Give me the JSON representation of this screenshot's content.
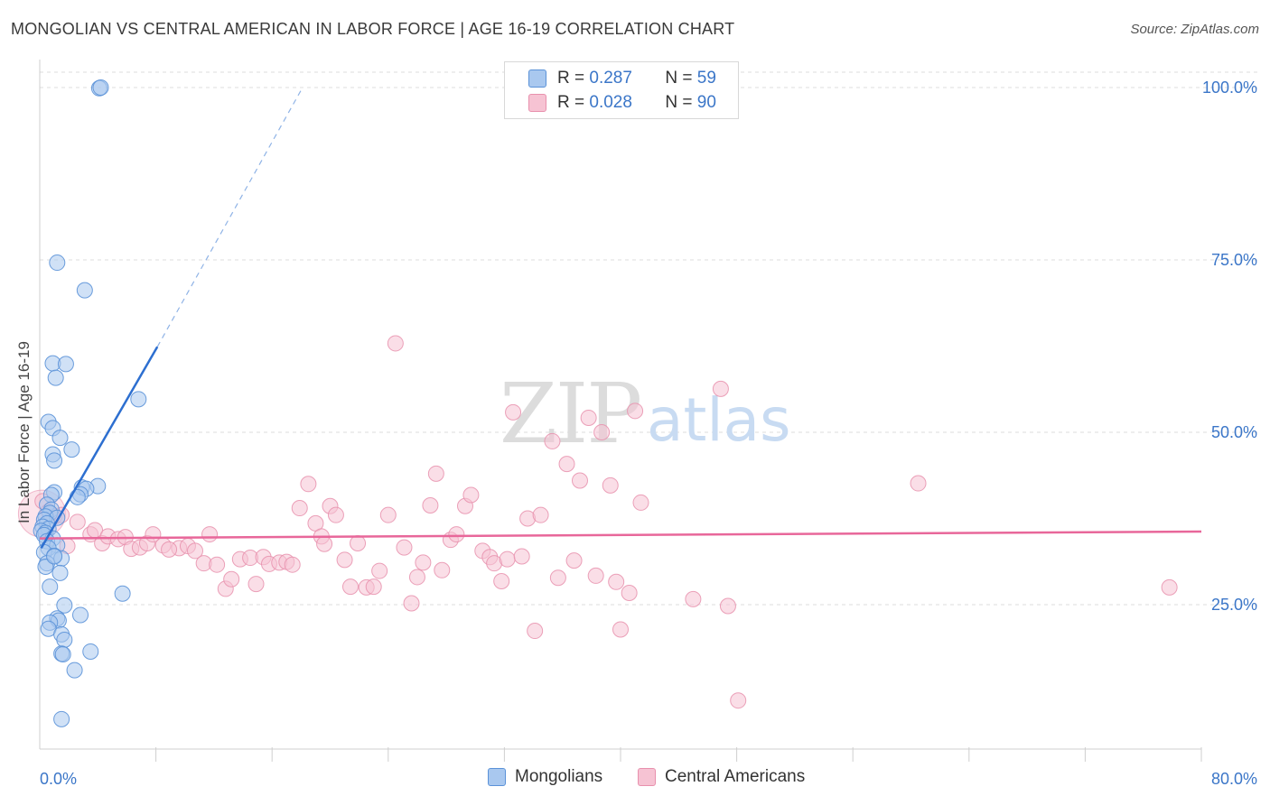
{
  "header": {
    "title": "MONGOLIAN VS CENTRAL AMERICAN IN LABOR FORCE | AGE 16-19 CORRELATION CHART",
    "source": "Source: ZipAtlas.com"
  },
  "colors": {
    "mongolian_fill": "#a9c8ef",
    "mongolian_stroke": "#5b92d8",
    "mongolian_line": "#2d6fd0",
    "central_fill": "#f6c3d3",
    "central_stroke": "#e890ad",
    "central_line": "#e8679a",
    "axis_label": "#3b76c8",
    "grid": "#dddddd"
  },
  "legend": {
    "series": [
      {
        "name": "Mongolians",
        "r_label": "R =",
        "r_value": "0.287",
        "n_label": "N =",
        "n_value": "59",
        "color_key": "mongolian"
      },
      {
        "name": "Central Americans",
        "r_label": "R =",
        "r_value": "0.028",
        "n_label": "N =",
        "n_value": "90",
        "color_key": "central"
      }
    ]
  },
  "watermark": {
    "zip": "ZIP",
    "atlas": "atlas"
  },
  "chart_data": {
    "type": "scatter",
    "title": "MONGOLIAN VS CENTRAL AMERICAN IN LABOR FORCE | AGE 16-19 CORRELATION CHART",
    "xlabel": "",
    "ylabel": "In Labor Force | Age 16-19",
    "xlim": [
      0,
      80
    ],
    "ylim": [
      0,
      103
    ],
    "x_tick_labels": [
      "0.0%",
      "80.0%"
    ],
    "y_ticks": [
      25,
      50,
      75,
      100
    ],
    "y_tick_labels": [
      "25.0%",
      "50.0%",
      "75.0%",
      "100.0%"
    ],
    "series": [
      {
        "name": "Mongolians",
        "color_key": "mongolian",
        "points": [
          [
            4.1,
            99.9
          ],
          [
            4.2,
            100.0
          ],
          [
            1.2,
            74.6
          ],
          [
            3.1,
            70.6
          ],
          [
            0.9,
            60.0
          ],
          [
            1.8,
            59.9
          ],
          [
            1.1,
            57.9
          ],
          [
            6.8,
            54.8
          ],
          [
            0.6,
            51.5
          ],
          [
            0.9,
            50.6
          ],
          [
            1.4,
            49.2
          ],
          [
            2.2,
            47.5
          ],
          [
            0.9,
            46.8
          ],
          [
            1.0,
            45.9
          ],
          [
            4.0,
            42.2
          ],
          [
            2.9,
            42.0
          ],
          [
            3.2,
            41.8
          ],
          [
            2.8,
            41.0
          ],
          [
            2.6,
            40.6
          ],
          [
            1.0,
            41.3
          ],
          [
            0.8,
            40.9
          ],
          [
            0.5,
            39.5
          ],
          [
            0.8,
            38.8
          ],
          [
            0.7,
            38.3
          ],
          [
            0.4,
            37.8
          ],
          [
            1.2,
            37.6
          ],
          [
            0.3,
            37.3
          ],
          [
            0.5,
            36.8
          ],
          [
            0.2,
            36.3
          ],
          [
            0.6,
            36.0
          ],
          [
            0.1,
            35.7
          ],
          [
            0.4,
            35.4
          ],
          [
            0.3,
            35.1
          ],
          [
            0.9,
            34.6
          ],
          [
            0.5,
            34.2
          ],
          [
            1.2,
            33.6
          ],
          [
            0.6,
            33.2
          ],
          [
            0.3,
            32.6
          ],
          [
            1.0,
            32.1
          ],
          [
            1.5,
            31.7
          ],
          [
            0.5,
            31.0
          ],
          [
            0.4,
            30.5
          ],
          [
            1.4,
            29.6
          ],
          [
            0.7,
            27.6
          ],
          [
            5.7,
            26.6
          ],
          [
            1.7,
            24.9
          ],
          [
            2.8,
            23.5
          ],
          [
            1.2,
            23.0
          ],
          [
            1.3,
            22.7
          ],
          [
            0.7,
            22.4
          ],
          [
            0.6,
            21.5
          ],
          [
            1.5,
            20.7
          ],
          [
            1.7,
            19.9
          ],
          [
            1.5,
            17.9
          ],
          [
            1.6,
            17.8
          ],
          [
            3.5,
            18.2
          ],
          [
            2.4,
            15.5
          ],
          [
            1.5,
            8.4
          ],
          [
            1.0,
            32.0
          ]
        ]
      },
      {
        "name": "Central Americans",
        "color_key": "central",
        "points": [
          [
            0.2,
            40.0
          ],
          [
            0.6,
            38.5
          ],
          [
            1.0,
            37.8
          ],
          [
            1.5,
            38.0
          ],
          [
            1.9,
            33.5
          ],
          [
            2.6,
            37.0
          ],
          [
            3.5,
            35.2
          ],
          [
            3.8,
            35.8
          ],
          [
            4.3,
            33.9
          ],
          [
            4.7,
            34.9
          ],
          [
            5.4,
            34.5
          ],
          [
            5.9,
            34.8
          ],
          [
            6.3,
            33.1
          ],
          [
            6.9,
            33.3
          ],
          [
            7.4,
            33.9
          ],
          [
            7.8,
            35.2
          ],
          [
            8.5,
            33.6
          ],
          [
            9.6,
            33.2
          ],
          [
            10.2,
            33.5
          ],
          [
            10.7,
            32.8
          ],
          [
            11.3,
            31.0
          ],
          [
            11.7,
            35.2
          ],
          [
            12.2,
            30.8
          ],
          [
            12.8,
            27.3
          ],
          [
            13.2,
            28.7
          ],
          [
            13.8,
            31.6
          ],
          [
            14.5,
            31.8
          ],
          [
            14.9,
            28.0
          ],
          [
            15.4,
            31.9
          ],
          [
            15.8,
            30.9
          ],
          [
            16.5,
            31.1
          ],
          [
            17.0,
            31.2
          ],
          [
            17.4,
            30.8
          ],
          [
            17.9,
            39.0
          ],
          [
            18.5,
            42.5
          ],
          [
            19.0,
            36.8
          ],
          [
            19.4,
            34.9
          ],
          [
            20.0,
            39.3
          ],
          [
            20.4,
            38.0
          ],
          [
            21.0,
            31.5
          ],
          [
            21.4,
            27.6
          ],
          [
            21.9,
            33.9
          ],
          [
            22.5,
            27.5
          ],
          [
            23.0,
            27.6
          ],
          [
            23.4,
            29.9
          ],
          [
            24.0,
            38.0
          ],
          [
            24.5,
            62.9
          ],
          [
            25.1,
            33.3
          ],
          [
            25.6,
            25.2
          ],
          [
            26.0,
            29.0
          ],
          [
            26.4,
            31.1
          ],
          [
            26.9,
            39.4
          ],
          [
            27.3,
            44.0
          ],
          [
            27.7,
            30.0
          ],
          [
            28.3,
            34.4
          ],
          [
            28.7,
            35.2
          ],
          [
            29.3,
            39.3
          ],
          [
            29.7,
            40.9
          ],
          [
            30.5,
            32.8
          ],
          [
            31.0,
            31.9
          ],
          [
            31.3,
            31.0
          ],
          [
            31.8,
            28.4
          ],
          [
            32.2,
            31.6
          ],
          [
            32.6,
            52.9
          ],
          [
            33.2,
            32.0
          ],
          [
            33.6,
            37.5
          ],
          [
            34.1,
            21.2
          ],
          [
            34.5,
            38.0
          ],
          [
            35.3,
            48.7
          ],
          [
            35.7,
            28.9
          ],
          [
            36.3,
            45.4
          ],
          [
            36.8,
            31.4
          ],
          [
            37.2,
            43.0
          ],
          [
            37.8,
            52.1
          ],
          [
            38.3,
            29.2
          ],
          [
            38.7,
            50.0
          ],
          [
            39.3,
            42.3
          ],
          [
            39.7,
            28.3
          ],
          [
            40.0,
            21.4
          ],
          [
            40.6,
            26.7
          ],
          [
            41.0,
            53.1
          ],
          [
            41.4,
            39.8
          ],
          [
            45.0,
            25.8
          ],
          [
            46.9,
            56.3
          ],
          [
            47.4,
            24.8
          ],
          [
            48.1,
            11.1
          ],
          [
            60.5,
            42.6
          ],
          [
            77.8,
            27.5
          ],
          [
            8.9,
            33.0
          ],
          [
            19.6,
            33.8
          ]
        ]
      }
    ],
    "trendlines": [
      {
        "series": "Mongolians",
        "solid_from": [
          0.1,
          33.2
        ],
        "solid_to": [
          8.1,
          62.4
        ],
        "dashed_to": [
          18.1,
          100.0
        ]
      },
      {
        "series": "Central Americans",
        "from": [
          0.0,
          34.6
        ],
        "to": [
          80.0,
          35.6
        ]
      }
    ]
  }
}
